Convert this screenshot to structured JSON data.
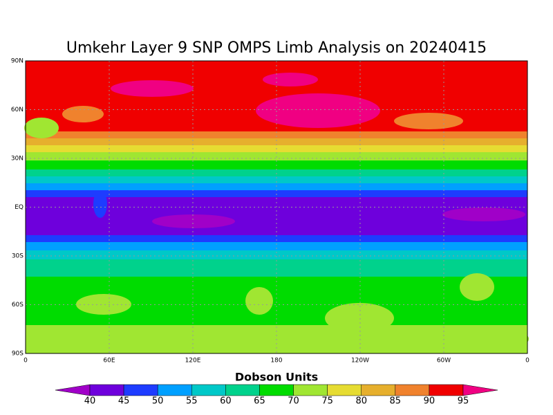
{
  "chart_data": {
    "type": "map",
    "title": "Umkehr Layer 9 SNP OMPS Limb Analysis on 20240415",
    "xlim": [
      0,
      360
    ],
    "xticks": [
      0,
      {
        "value": 60,
        "label": "60E"
      },
      {
        "value": 120,
        "label": "120E"
      },
      180,
      {
        "value": 240,
        "label": "120W"
      },
      {
        "value": 300,
        "label": "60W"
      },
      {
        "value": 360,
        "label": "0"
      }
    ],
    "ylim": [
      -90,
      90
    ],
    "yticks": [
      {
        "value": 90,
        "label": "90N"
      },
      {
        "value": 60,
        "label": "60N"
      },
      {
        "value": 30,
        "label": "30N"
      },
      {
        "value": 0,
        "label": "EQ"
      },
      {
        "value": -30,
        "label": "30S"
      },
      {
        "value": -60,
        "label": "60S"
      },
      {
        "value": -90,
        "label": "90S"
      }
    ],
    "grid": true,
    "colorbar": {
      "title": "Dobson Units",
      "levels": [
        40,
        45,
        50,
        55,
        60,
        65,
        70,
        75,
        80,
        85,
        90,
        95
      ],
      "colors": [
        "#a000c8",
        "#6e00dc",
        "#1e3cff",
        "#00a0ff",
        "#00c8c8",
        "#00d28c",
        "#00dc00",
        "#a0e632",
        "#e6dc32",
        "#e6af2d",
        "#f0822d",
        "#f00000",
        "#f00082"
      ]
    }
  }
}
